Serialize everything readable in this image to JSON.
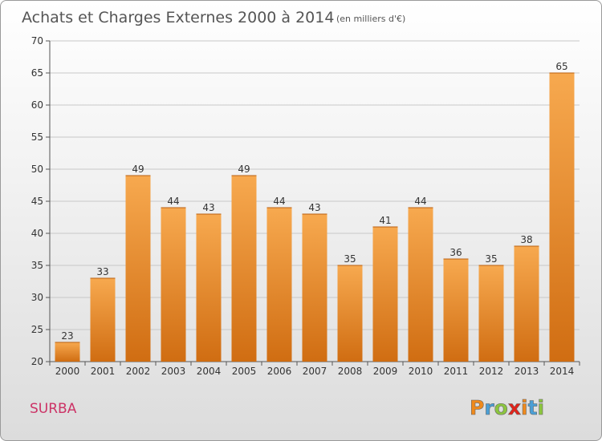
{
  "chart_data": {
    "type": "bar",
    "title": "Achats et Charges Externes 2000 à 2014",
    "subtitle": "(en milliers d'€)",
    "categories": [
      "2000",
      "2001",
      "2002",
      "2003",
      "2004",
      "2005",
      "2006",
      "2007",
      "2008",
      "2009",
      "2010",
      "2011",
      "2012",
      "2013",
      "2014"
    ],
    "values": [
      23,
      33,
      49,
      44,
      43,
      49,
      44,
      43,
      35,
      41,
      44,
      36,
      35,
      38,
      65
    ],
    "ylim": [
      20,
      70
    ],
    "yticks": [
      20,
      25,
      30,
      35,
      40,
      45,
      50,
      55,
      60,
      65,
      70
    ],
    "grid": true,
    "bar_colors": {
      "top": "#f7a94f",
      "bottom": "#d06d12",
      "grid": "#c8c8c8"
    }
  },
  "footer": {
    "commune": "SURBA",
    "logo_letters": [
      "P",
      "r",
      "o",
      "x",
      "i",
      "t",
      "i"
    ],
    "logo_colors": [
      "#f08a1c",
      "#4a9fd6",
      "#8cc63f",
      "#e2231a",
      "#f08a1c",
      "#4a9fd6",
      "#8cc63f"
    ]
  }
}
